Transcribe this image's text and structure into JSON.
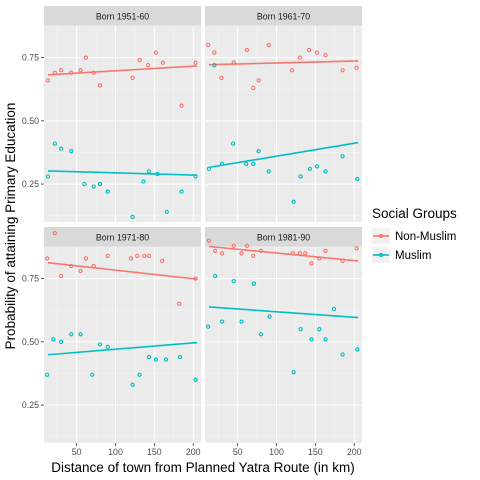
{
  "chart_data": {
    "type": "scatter",
    "xlabel": "Distance of town from Planned Yatra Route (in km)",
    "ylabel": "Probability of attaining Primary Education",
    "xlim": [
      8,
      210
    ],
    "ylim": [
      0.1,
      0.875
    ],
    "x_ticks": [
      50,
      100,
      150,
      200
    ],
    "y_ticks": [
      0.25,
      0.5,
      0.75
    ],
    "y_tick_labels": [
      "0.25",
      "0.50",
      "0.75"
    ],
    "grid": true,
    "legend": {
      "title": "Social Groups",
      "placement": "right",
      "entries": [
        {
          "name": "Non-Muslim",
          "color": "#f8766d"
        },
        {
          "name": "Muslim",
          "color": "#00bfc4"
        }
      ]
    },
    "panels": [
      {
        "title": "Born 1951-60",
        "series": [
          {
            "name": "Non-Muslim",
            "color": "#f8766d",
            "points": [
              [
                13,
                0.66
              ],
              [
                22,
                0.69
              ],
              [
                30,
                0.7
              ],
              [
                43,
                0.69
              ],
              [
                55,
                0.7
              ],
              [
                62,
                0.75
              ],
              [
                72,
                0.69
              ],
              [
                80,
                0.64
              ],
              [
                122,
                0.67
              ],
              [
                131,
                0.74
              ],
              [
                142,
                0.72
              ],
              [
                152,
                0.77
              ],
              [
                161,
                0.73
              ],
              [
                185,
                0.56
              ],
              [
                203,
                0.73
              ]
            ],
            "trend": [
              [
                13,
                0.682
              ],
              [
                205,
                0.717
              ]
            ]
          },
          {
            "name": "Muslim",
            "color": "#00bfc4",
            "points": [
              [
                13,
                0.28
              ],
              [
                22,
                0.41
              ],
              [
                30,
                0.39
              ],
              [
                43,
                0.38
              ],
              [
                60,
                0.25
              ],
              [
                72,
                0.24
              ],
              [
                80,
                0.25
              ],
              [
                90,
                0.22
              ],
              [
                122,
                0.12
              ],
              [
                136,
                0.26
              ],
              [
                143,
                0.3
              ],
              [
                154,
                0.29
              ],
              [
                166,
                0.14
              ],
              [
                185,
                0.22
              ],
              [
                203,
                0.28
              ]
            ],
            "trend": [
              [
                13,
                0.302
              ],
              [
                205,
                0.285
              ]
            ]
          }
        ]
      },
      {
        "title": "Born 1961-70",
        "series": [
          {
            "name": "Non-Muslim",
            "color": "#f8766d",
            "points": [
              [
                12,
                0.8
              ],
              [
                20,
                0.77
              ],
              [
                29,
                0.67
              ],
              [
                45,
                0.73
              ],
              [
                62,
                0.78
              ],
              [
                70,
                0.63
              ],
              [
                77,
                0.66
              ],
              [
                90,
                0.8
              ],
              [
                120,
                0.7
              ],
              [
                130,
                0.75
              ],
              [
                142,
                0.78
              ],
              [
                152,
                0.77
              ],
              [
                163,
                0.76
              ],
              [
                185,
                0.7
              ],
              [
                203,
                0.71
              ]
            ],
            "trend": [
              [
                13,
                0.722
              ],
              [
                205,
                0.737
              ]
            ]
          },
          {
            "name": "Muslim",
            "color": "#00bfc4",
            "points": [
              [
                13,
                0.31
              ],
              [
                20,
                0.72
              ],
              [
                30,
                0.33
              ],
              [
                44,
                0.41
              ],
              [
                61,
                0.33
              ],
              [
                70,
                0.33
              ],
              [
                77,
                0.38
              ],
              [
                90,
                0.3
              ],
              [
                122,
                0.18
              ],
              [
                131,
                0.28
              ],
              [
                143,
                0.31
              ],
              [
                152,
                0.32
              ],
              [
                163,
                0.3
              ],
              [
                185,
                0.36
              ],
              [
                204,
                0.27
              ]
            ],
            "trend": [
              [
                13,
                0.316
              ],
              [
                205,
                0.414
              ]
            ]
          }
        ]
      },
      {
        "title": "Born 1971-80",
        "series": [
          {
            "name": "Non-Muslim",
            "color": "#f8766d",
            "points": [
              [
                12,
                0.83
              ],
              [
                22,
                0.93
              ],
              [
                30,
                0.76
              ],
              [
                43,
                0.8
              ],
              [
                55,
                0.78
              ],
              [
                62,
                0.83
              ],
              [
                72,
                0.8
              ],
              [
                90,
                0.84
              ],
              [
                120,
                0.83
              ],
              [
                128,
                0.84
              ],
              [
                137,
                0.84
              ],
              [
                143,
                0.84
              ],
              [
                160,
                0.82
              ],
              [
                182,
                0.65
              ],
              [
                203,
                0.75
              ]
            ],
            "trend": [
              [
                13,
                0.813
              ],
              [
                205,
                0.748
              ]
            ]
          },
          {
            "name": "Muslim",
            "color": "#00bfc4",
            "points": [
              [
                12,
                0.37
              ],
              [
                20,
                0.51
              ],
              [
                30,
                0.5
              ],
              [
                43,
                0.53
              ],
              [
                55,
                0.53
              ],
              [
                70,
                0.37
              ],
              [
                80,
                0.49
              ],
              [
                90,
                0.48
              ],
              [
                122,
                0.33
              ],
              [
                131,
                0.37
              ],
              [
                143,
                0.44
              ],
              [
                152,
                0.43
              ],
              [
                165,
                0.43
              ],
              [
                183,
                0.44
              ],
              [
                203,
                0.35
              ]
            ],
            "trend": [
              [
                13,
                0.449
              ],
              [
                205,
                0.497
              ]
            ]
          }
        ]
      },
      {
        "title": "Born 1981-90",
        "series": [
          {
            "name": "Non-Muslim",
            "color": "#f8766d",
            "points": [
              [
                13,
                0.9
              ],
              [
                21,
                0.86
              ],
              [
                30,
                0.85
              ],
              [
                45,
                0.88
              ],
              [
                55,
                0.85
              ],
              [
                62,
                0.88
              ],
              [
                70,
                0.84
              ],
              [
                80,
                0.86
              ],
              [
                121,
                0.85
              ],
              [
                130,
                0.85
              ],
              [
                137,
                0.85
              ],
              [
                145,
                0.81
              ],
              [
                155,
                0.83
              ],
              [
                163,
                0.86
              ],
              [
                185,
                0.82
              ],
              [
                203,
                0.87
              ]
            ],
            "trend": [
              [
                13,
                0.877
              ],
              [
                205,
                0.82
              ]
            ]
          },
          {
            "name": "Muslim",
            "color": "#00bfc4",
            "points": [
              [
                12,
                0.56
              ],
              [
                21,
                0.76
              ],
              [
                30,
                0.58
              ],
              [
                45,
                0.74
              ],
              [
                55,
                0.58
              ],
              [
                71,
                0.73
              ],
              [
                80,
                0.53
              ],
              [
                91,
                0.6
              ],
              [
                122,
                0.38
              ],
              [
                131,
                0.55
              ],
              [
                145,
                0.51
              ],
              [
                155,
                0.55
              ],
              [
                163,
                0.51
              ],
              [
                174,
                0.63
              ],
              [
                185,
                0.45
              ],
              [
                204,
                0.47
              ]
            ],
            "trend": [
              [
                13,
                0.638
              ],
              [
                205,
                0.596
              ]
            ]
          }
        ]
      }
    ]
  }
}
